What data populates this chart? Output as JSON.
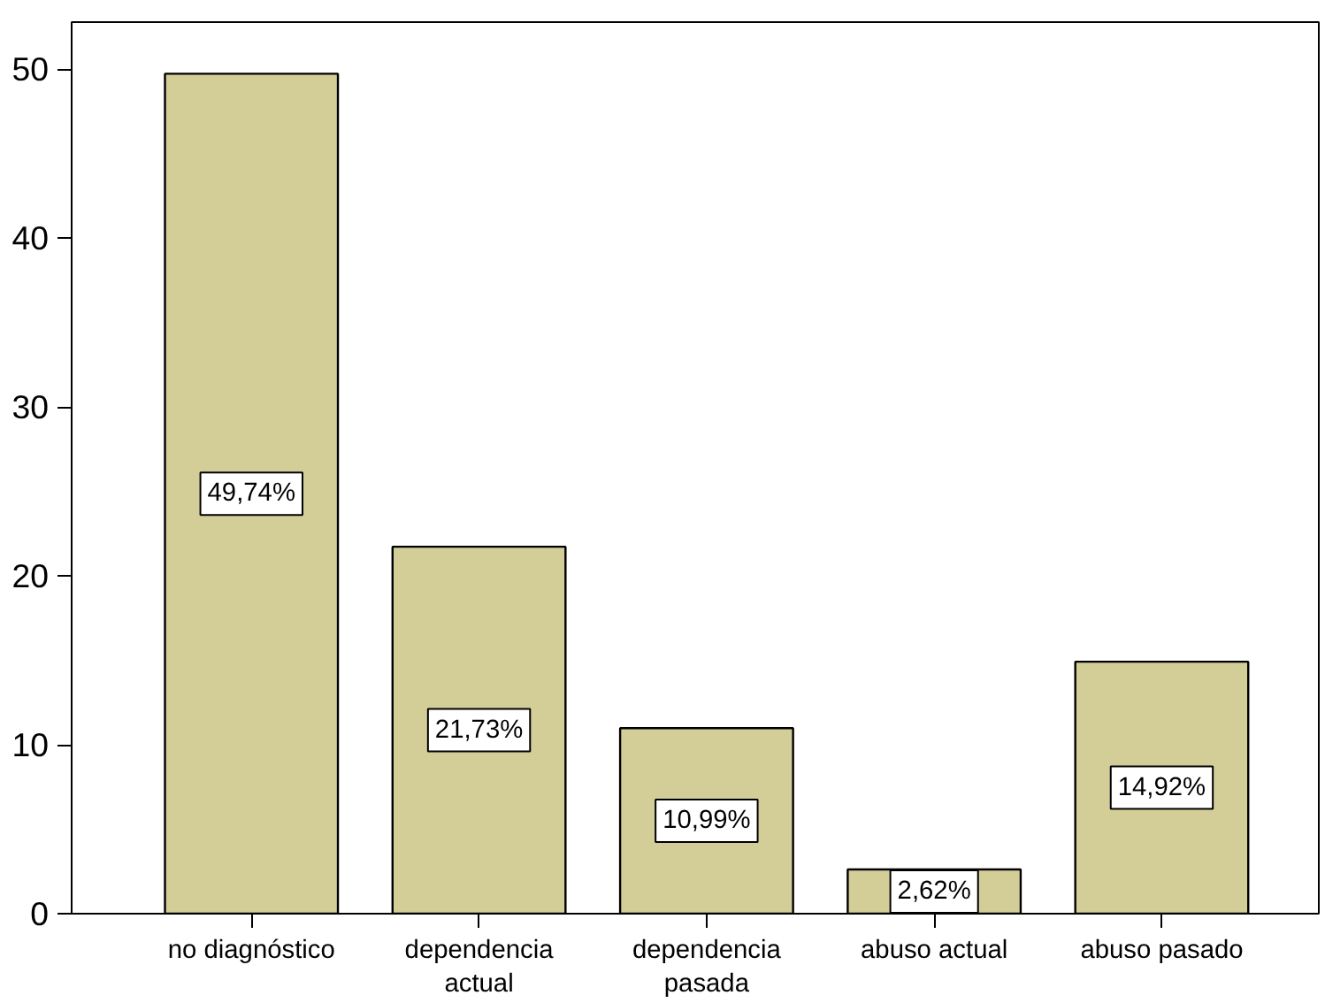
{
  "chart_data": {
    "type": "bar",
    "categories": [
      "no diagnóstico",
      "dependencia\nactual",
      "dependencia\npasada",
      "abuso actual",
      "abuso pasado"
    ],
    "values": [
      49.74,
      21.73,
      10.99,
      2.62,
      14.92
    ],
    "value_labels": [
      "49,74%",
      "21,73%",
      "10,99%",
      "2,62%",
      "14,92%"
    ],
    "color": "#d3ce98",
    "ylim": [
      0,
      52.8
    ],
    "yticks": [
      0,
      10,
      20,
      30,
      40,
      50
    ],
    "grid": false
  }
}
